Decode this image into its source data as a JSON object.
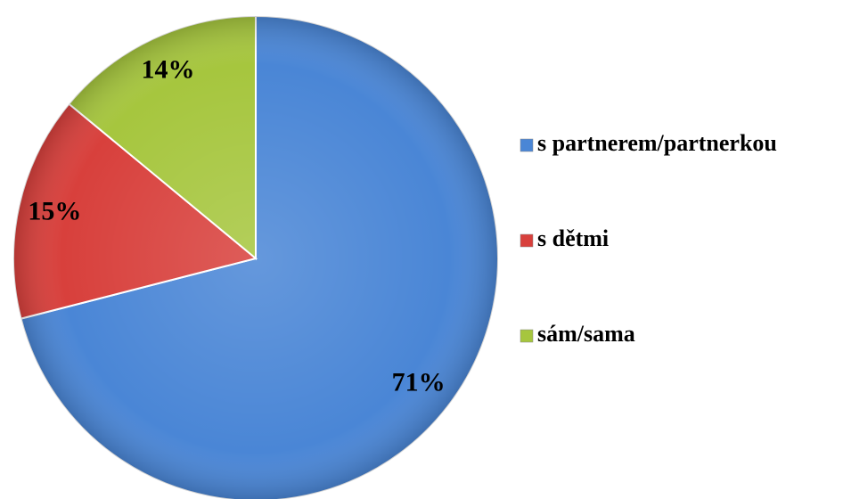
{
  "chart_data": {
    "type": "pie",
    "categories": [
      "s partnerem/partnerkou",
      "s dětmi",
      "sám/sama"
    ],
    "values": [
      71,
      15,
      14
    ],
    "value_labels": [
      "71%",
      "15%",
      "14%"
    ],
    "colors": [
      "#4a86d6",
      "#d8403c",
      "#a6c63e"
    ],
    "legend": "right"
  }
}
